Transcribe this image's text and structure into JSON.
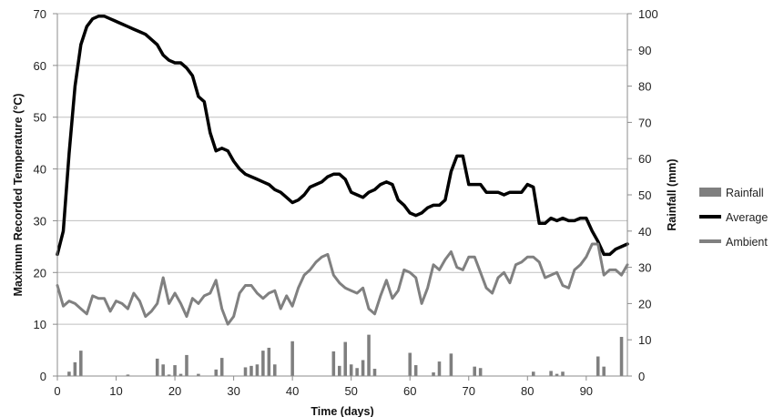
{
  "chart_data": {
    "type": "line",
    "xlabel": "Time (days)",
    "ylabel_left": "Maximum Recorded Temperature (°C)",
    "ylabel_right": "Rainfall (mm)",
    "xlim": [
      0,
      97
    ],
    "ylim_left": [
      0,
      70
    ],
    "ylim_right": [
      0,
      100
    ],
    "x_ticks": [
      0,
      10,
      20,
      30,
      40,
      50,
      60,
      70,
      80,
      90
    ],
    "y_left_ticks": [
      0,
      10,
      20,
      30,
      40,
      50,
      60,
      70
    ],
    "y_right_ticks": [
      0,
      10,
      20,
      30,
      40,
      50,
      60,
      70,
      80,
      90,
      100
    ],
    "grid": "horizontal",
    "legend_position": "right",
    "legend": [
      {
        "label": "Rainfall",
        "kind": "bar",
        "color": "#7f7f7f"
      },
      {
        "label": "Average",
        "kind": "line",
        "color": "#000000"
      },
      {
        "label": "Ambient",
        "kind": "line",
        "color": "#808080"
      }
    ],
    "series": [
      {
        "name": "Average",
        "axis": "left",
        "color": "#000000",
        "points": [
          [
            0,
            23.5
          ],
          [
            1,
            28
          ],
          [
            2,
            43
          ],
          [
            3,
            56
          ],
          [
            4,
            64
          ],
          [
            5,
            67.5
          ],
          [
            6,
            69
          ],
          [
            7,
            69.5
          ],
          [
            8,
            69.5
          ],
          [
            9,
            69
          ],
          [
            10,
            68.5
          ],
          [
            11,
            68
          ],
          [
            12,
            67.5
          ],
          [
            13,
            67
          ],
          [
            14,
            66.5
          ],
          [
            15,
            66
          ],
          [
            16,
            65
          ],
          [
            17,
            64
          ],
          [
            18,
            62
          ],
          [
            19,
            61
          ],
          [
            20,
            60.5
          ],
          [
            21,
            60.5
          ],
          [
            22,
            59.5
          ],
          [
            23,
            58
          ],
          [
            24,
            54
          ],
          [
            25,
            53
          ],
          [
            26,
            47
          ],
          [
            27,
            43.5
          ],
          [
            28,
            44
          ],
          [
            29,
            43.5
          ],
          [
            30,
            41.5
          ],
          [
            31,
            40
          ],
          [
            32,
            39
          ],
          [
            33,
            38.5
          ],
          [
            34,
            38
          ],
          [
            35,
            37.5
          ],
          [
            36,
            37
          ],
          [
            37,
            36
          ],
          [
            38,
            35.5
          ],
          [
            39,
            34.5
          ],
          [
            40,
            33.5
          ],
          [
            41,
            34
          ],
          [
            42,
            35
          ],
          [
            43,
            36.5
          ],
          [
            44,
            37
          ],
          [
            45,
            37.5
          ],
          [
            46,
            38.5
          ],
          [
            47,
            39
          ],
          [
            48,
            39
          ],
          [
            49,
            38
          ],
          [
            50,
            35.5
          ],
          [
            51,
            35
          ],
          [
            52,
            34.5
          ],
          [
            53,
            35.5
          ],
          [
            54,
            36
          ],
          [
            55,
            37
          ],
          [
            56,
            37.5
          ],
          [
            57,
            37
          ],
          [
            58,
            34
          ],
          [
            59,
            33
          ],
          [
            60,
            31.5
          ],
          [
            61,
            31
          ],
          [
            62,
            31.5
          ],
          [
            63,
            32.5
          ],
          [
            64,
            33
          ],
          [
            65,
            33
          ],
          [
            66,
            34
          ],
          [
            67,
            39.5
          ],
          [
            68,
            42.5
          ],
          [
            69,
            42.5
          ],
          [
            70,
            37
          ],
          [
            71,
            37
          ],
          [
            72,
            37
          ],
          [
            73,
            35.5
          ],
          [
            74,
            35.5
          ],
          [
            75,
            35.5
          ],
          [
            76,
            35
          ],
          [
            77,
            35.5
          ],
          [
            78,
            35.5
          ],
          [
            79,
            35.5
          ],
          [
            80,
            37
          ],
          [
            81,
            36.5
          ],
          [
            82,
            29.5
          ],
          [
            83,
            29.5
          ],
          [
            84,
            30.5
          ],
          [
            85,
            30
          ],
          [
            86,
            30.5
          ],
          [
            87,
            30
          ],
          [
            88,
            30
          ],
          [
            89,
            30.5
          ],
          [
            90,
            30.5
          ],
          [
            91,
            28
          ],
          [
            92,
            26
          ],
          [
            93,
            23.5
          ],
          [
            94,
            23.5
          ],
          [
            95,
            24.5
          ],
          [
            96,
            25
          ],
          [
            97,
            25.5
          ]
        ]
      },
      {
        "name": "Ambient",
        "axis": "left",
        "color": "#808080",
        "points": [
          [
            0,
            17.5
          ],
          [
            1,
            13.5
          ],
          [
            2,
            14.5
          ],
          [
            3,
            14
          ],
          [
            4,
            13
          ],
          [
            5,
            12
          ],
          [
            6,
            15.5
          ],
          [
            7,
            15
          ],
          [
            8,
            15
          ],
          [
            9,
            12.5
          ],
          [
            10,
            14.5
          ],
          [
            11,
            14
          ],
          [
            12,
            13
          ],
          [
            13,
            16
          ],
          [
            14,
            14.5
          ],
          [
            15,
            11.5
          ],
          [
            16,
            12.5
          ],
          [
            17,
            14
          ],
          [
            18,
            19
          ],
          [
            19,
            14
          ],
          [
            20,
            16
          ],
          [
            21,
            14
          ],
          [
            22,
            11.5
          ],
          [
            23,
            15
          ],
          [
            24,
            14
          ],
          [
            25,
            15.5
          ],
          [
            26,
            16
          ],
          [
            27,
            18.5
          ],
          [
            28,
            13
          ],
          [
            29,
            10
          ],
          [
            30,
            11.5
          ],
          [
            31,
            16
          ],
          [
            32,
            17.5
          ],
          [
            33,
            17.5
          ],
          [
            34,
            16
          ],
          [
            35,
            15
          ],
          [
            36,
            16
          ],
          [
            37,
            16.5
          ],
          [
            38,
            13
          ],
          [
            39,
            15.5
          ],
          [
            40,
            13.5
          ],
          [
            41,
            17
          ],
          [
            42,
            19.5
          ],
          [
            43,
            20.5
          ],
          [
            44,
            22
          ],
          [
            45,
            23
          ],
          [
            46,
            23.5
          ],
          [
            47,
            19.5
          ],
          [
            48,
            18
          ],
          [
            49,
            17
          ],
          [
            50,
            16.5
          ],
          [
            51,
            16
          ],
          [
            52,
            17
          ],
          [
            53,
            13
          ],
          [
            54,
            12
          ],
          [
            55,
            15.5
          ],
          [
            56,
            18.5
          ],
          [
            57,
            15
          ],
          [
            58,
            16.5
          ],
          [
            59,
            20.5
          ],
          [
            60,
            20
          ],
          [
            61,
            19
          ],
          [
            62,
            14
          ],
          [
            63,
            17
          ],
          [
            64,
            21.5
          ],
          [
            65,
            20.5
          ],
          [
            66,
            22.5
          ],
          [
            67,
            24
          ],
          [
            68,
            21
          ],
          [
            69,
            20.5
          ],
          [
            70,
            23
          ],
          [
            71,
            23
          ],
          [
            72,
            20
          ],
          [
            73,
            17
          ],
          [
            74,
            16
          ],
          [
            75,
            19
          ],
          [
            76,
            20
          ],
          [
            77,
            18
          ],
          [
            78,
            21.5
          ],
          [
            79,
            22
          ],
          [
            80,
            23
          ],
          [
            81,
            23
          ],
          [
            82,
            22
          ],
          [
            83,
            19
          ],
          [
            84,
            19.5
          ],
          [
            85,
            20
          ],
          [
            86,
            17.5
          ],
          [
            87,
            17
          ],
          [
            88,
            20.5
          ],
          [
            89,
            21.5
          ],
          [
            90,
            23
          ],
          [
            91,
            25.5
          ],
          [
            92,
            25.5
          ],
          [
            93,
            19.5
          ],
          [
            94,
            20.5
          ],
          [
            95,
            20.5
          ],
          [
            96,
            19.5
          ],
          [
            97,
            21.5
          ]
        ]
      },
      {
        "name": "Rainfall",
        "axis": "right",
        "type": "bar",
        "color": "#7f7f7f",
        "points": [
          [
            2,
            1.2
          ],
          [
            3,
            3.8
          ],
          [
            4,
            7
          ],
          [
            12,
            0.4
          ],
          [
            17,
            4.8
          ],
          [
            18,
            3.2
          ],
          [
            19,
            0.4
          ],
          [
            20,
            3
          ],
          [
            21,
            0.6
          ],
          [
            22,
            5.8
          ],
          [
            24,
            0.6
          ],
          [
            27,
            1.8
          ],
          [
            28,
            5
          ],
          [
            32,
            2.4
          ],
          [
            33,
            2.8
          ],
          [
            34,
            3.2
          ],
          [
            35,
            7
          ],
          [
            36,
            7.8
          ],
          [
            37,
            3.2
          ],
          [
            40,
            9.6
          ],
          [
            47,
            6.8
          ],
          [
            48,
            2.8
          ],
          [
            49,
            9.4
          ],
          [
            50,
            3.2
          ],
          [
            51,
            2.2
          ],
          [
            52,
            4.4
          ],
          [
            53,
            11.4
          ],
          [
            54,
            2
          ],
          [
            60,
            6.4
          ],
          [
            61,
            3
          ],
          [
            64,
            1
          ],
          [
            65,
            4
          ],
          [
            67,
            6.2
          ],
          [
            71,
            2.6
          ],
          [
            72,
            2.2
          ],
          [
            81,
            1.2
          ],
          [
            84,
            1.4
          ],
          [
            85,
            0.6
          ],
          [
            86,
            1.2
          ],
          [
            92,
            5.4
          ],
          [
            93,
            2.6
          ],
          [
            96,
            10.8
          ]
        ]
      }
    ]
  }
}
